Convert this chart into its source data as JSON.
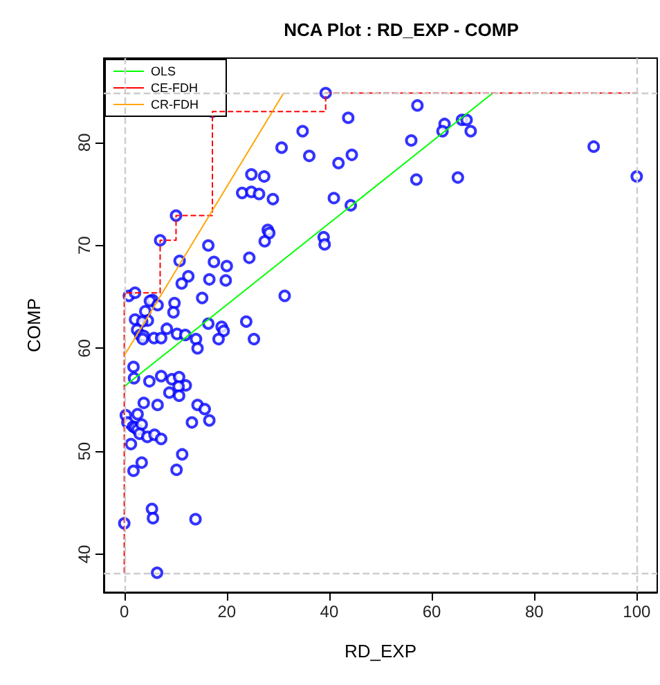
{
  "chart_data": {
    "type": "scatter",
    "title": "NCA Plot : RD_EXP - COMP",
    "xlabel": "RD_EXP",
    "ylabel": "COMP",
    "xlim": [
      -4,
      104
    ],
    "ylim": [
      36.3,
      88.2
    ],
    "xticks": [
      0,
      20,
      40,
      60,
      80,
      100
    ],
    "yticks": [
      40,
      50,
      60,
      70,
      80
    ],
    "grid": false,
    "legend": "top left",
    "marker": "circle",
    "ref_lines": [
      {
        "axis": "x",
        "value": 0,
        "color": "#cccccc",
        "line_style": "dashed"
      },
      {
        "axis": "x",
        "value": 100,
        "color": "#cccccc",
        "line_style": "dashed"
      },
      {
        "axis": "y",
        "value": 38.2,
        "color": "#cccccc",
        "line_style": "dashed"
      },
      {
        "axis": "y",
        "value": 84.8,
        "color": "#cccccc",
        "line_style": "dashed"
      }
    ],
    "series": [
      {
        "color": "#0000ff",
        "x": [
          0,
          6.4,
          39.3,
          17.2,
          10.1,
          7.0,
          0.9,
          2.1,
          24.8,
          27.3,
          23.0,
          24.8,
          26.3,
          29.0,
          30.7,
          28.0,
          28.3,
          27.4,
          16.4,
          10.8,
          17.5,
          20.0,
          24.4,
          12.5,
          11.2,
          16.6,
          19.8,
          15.2,
          5.5,
          5.0,
          6.5,
          9.8,
          4.1,
          9.6,
          2.1,
          4.6,
          3.5,
          2.5,
          3.1,
          3.8,
          8.3,
          16.4,
          23.8,
          19.0,
          19.4,
          10.3,
          11.9,
          5.8,
          7.2,
          14.0,
          25.3,
          3.6,
          18.4,
          14.3,
          1.8,
          1.9,
          4.9,
          7.2,
          9.3,
          10.7,
          12.0,
          10.6,
          8.8,
          10.7,
          3.8,
          6.5,
          14.3,
          15.7,
          16.6,
          13.2,
          0.3,
          2.6,
          0.6,
          1.7,
          2.1,
          2.6,
          3.4,
          3.0,
          4.5,
          5.9,
          7.2,
          1.3,
          11.3,
          3.4,
          1.8,
          10.2,
          5.4,
          5.6,
          13.9,
          57.2,
          43.7,
          34.8,
          36.1,
          41.8,
          44.4,
          56.0,
          62.5,
          62.1,
          65.9,
          66.8,
          67.6,
          91.6,
          100,
          57.0,
          65.1,
          40.9,
          44.2,
          38.9,
          39.1,
          31.3
        ],
        "values": [
          43.0,
          38.2,
          84.8,
          83.0,
          72.9,
          70.5,
          65.1,
          65.4,
          76.9,
          76.7,
          75.1,
          75.2,
          75.0,
          74.5,
          79.5,
          71.5,
          71.2,
          70.4,
          70.0,
          68.5,
          68.4,
          68.0,
          68.8,
          67.0,
          66.3,
          66.7,
          66.6,
          64.9,
          64.7,
          64.6,
          64.2,
          64.4,
          63.6,
          63.5,
          62.8,
          62.7,
          62.6,
          61.8,
          61.3,
          61.2,
          61.9,
          62.4,
          62.6,
          62.1,
          61.7,
          61.4,
          61.3,
          61.0,
          61.0,
          60.9,
          60.9,
          60.9,
          60.9,
          60.0,
          58.2,
          57.1,
          56.8,
          57.3,
          57.0,
          57.2,
          56.4,
          56.3,
          55.7,
          55.4,
          54.7,
          54.5,
          54.5,
          54.1,
          53.0,
          52.8,
          53.5,
          53.6,
          52.8,
          52.4,
          52.3,
          52.1,
          52.6,
          51.7,
          51.4,
          51.6,
          51.2,
          50.7,
          49.7,
          48.9,
          48.1,
          48.2,
          44.4,
          43.5,
          43.4,
          83.6,
          82.4,
          81.1,
          78.7,
          78.0,
          78.8,
          80.2,
          81.8,
          81.1,
          82.2,
          82.2,
          81.1,
          79.6,
          76.7,
          76.4,
          76.6,
          74.6,
          73.9,
          70.8,
          70.1,
          65.1
        ]
      },
      {
        "type": "line",
        "name": "OLS",
        "color": "#00ff00",
        "line_style": "solid",
        "marker": "none",
        "x": [
          0,
          71.9
        ],
        "values": [
          56.3,
          84.8
        ]
      },
      {
        "type": "step",
        "name": "CE-FDH",
        "color": "#ff0000",
        "line_style": "dashed",
        "marker": "none",
        "x": [
          0,
          0,
          7.0,
          10.1,
          17.2,
          39.3,
          100
        ],
        "values": [
          38.2,
          65.4,
          70.5,
          72.9,
          83.0,
          84.8,
          84.8
        ]
      },
      {
        "type": "line",
        "name": "CR-FDH",
        "color": "#ffa500",
        "line_style": "solid",
        "marker": "none",
        "x": [
          0,
          31.1
        ],
        "values": [
          59.3,
          84.8
        ]
      }
    ]
  }
}
